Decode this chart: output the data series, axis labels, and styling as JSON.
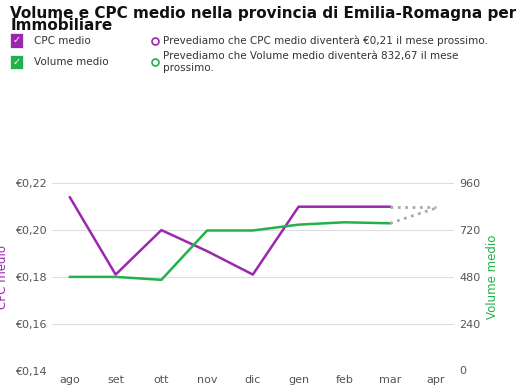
{
  "title_line1": "Volume e CPC medio nella provincia di Emilia-Romagna per il settore",
  "title_line2": "Immobiliare",
  "months": [
    "ago",
    "set",
    "ott",
    "nov",
    "dic",
    "gen",
    "feb",
    "mar",
    "apr"
  ],
  "cpc_values": [
    0.214,
    0.181,
    0.2,
    0.191,
    0.181,
    0.21,
    0.21,
    0.21
  ],
  "cpc_predicted": [
    0.21,
    0.21
  ],
  "volume_values": [
    480,
    480,
    465,
    718,
    718,
    748,
    760,
    755
  ],
  "volume_predicted": [
    755,
    832.67
  ],
  "cpc_color": "#9b27af",
  "volume_color": "#22b14c",
  "predicted_color": "#aaaaaa",
  "ylabel_left": "CPC medio",
  "ylabel_right": "Volume medio",
  "ylim_left": [
    0.14,
    0.22
  ],
  "ylim_right": [
    0,
    960
  ],
  "yticks_left": [
    0.14,
    0.16,
    0.18,
    0.2,
    0.22
  ],
  "yticks_right": [
    0,
    240,
    480,
    720,
    960
  ],
  "legend_cpc_label": "CPC medio",
  "legend_volume_label": "Volume medio",
  "legend_pred_cpc": "Prevediamo che CPC medio diventerà €0,21 il mese prossimo.",
  "legend_pred_vol": "Prevediamo che Volume medio diventerà 832,67 il mese\nprossimo.",
  "bg_color": "#ffffff",
  "grid_color": "#dddddd",
  "title_fontsize": 11,
  "legend_fontsize": 7.5,
  "axis_label_fontsize": 8.5,
  "tick_fontsize": 8
}
